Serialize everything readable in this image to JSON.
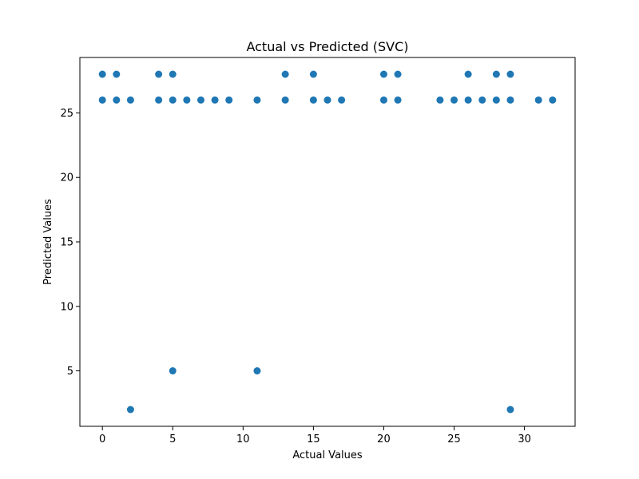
{
  "chart_data": {
    "type": "scatter",
    "title": "Actual vs Predicted (SVC)",
    "xlabel": "Actual Values",
    "ylabel": "Predicted Values",
    "xlim": [
      -1.6,
      33.6
    ],
    "ylim": [
      0.7,
      29.3
    ],
    "xticks": [
      0,
      5,
      10,
      15,
      20,
      25,
      30
    ],
    "yticks": [
      5,
      10,
      15,
      20,
      25
    ],
    "grid": false,
    "marker_color": "#1f77b4",
    "points": [
      {
        "x": 0,
        "y": 26
      },
      {
        "x": 0,
        "y": 28
      },
      {
        "x": 1,
        "y": 26
      },
      {
        "x": 1,
        "y": 28
      },
      {
        "x": 2,
        "y": 26
      },
      {
        "x": 2,
        "y": 2
      },
      {
        "x": 4,
        "y": 26
      },
      {
        "x": 4,
        "y": 28
      },
      {
        "x": 5,
        "y": 26
      },
      {
        "x": 5,
        "y": 28
      },
      {
        "x": 5,
        "y": 5
      },
      {
        "x": 6,
        "y": 26
      },
      {
        "x": 7,
        "y": 26
      },
      {
        "x": 8,
        "y": 26
      },
      {
        "x": 9,
        "y": 26
      },
      {
        "x": 11,
        "y": 26
      },
      {
        "x": 11,
        "y": 5
      },
      {
        "x": 13,
        "y": 26
      },
      {
        "x": 13,
        "y": 28
      },
      {
        "x": 15,
        "y": 26
      },
      {
        "x": 15,
        "y": 28
      },
      {
        "x": 16,
        "y": 26
      },
      {
        "x": 17,
        "y": 26
      },
      {
        "x": 20,
        "y": 26
      },
      {
        "x": 20,
        "y": 28
      },
      {
        "x": 21,
        "y": 26
      },
      {
        "x": 21,
        "y": 28
      },
      {
        "x": 24,
        "y": 26
      },
      {
        "x": 25,
        "y": 26
      },
      {
        "x": 26,
        "y": 26
      },
      {
        "x": 26,
        "y": 28
      },
      {
        "x": 27,
        "y": 26
      },
      {
        "x": 28,
        "y": 26
      },
      {
        "x": 28,
        "y": 28
      },
      {
        "x": 29,
        "y": 26
      },
      {
        "x": 29,
        "y": 28
      },
      {
        "x": 29,
        "y": 2
      },
      {
        "x": 31,
        "y": 26
      },
      {
        "x": 32,
        "y": 26
      }
    ]
  }
}
